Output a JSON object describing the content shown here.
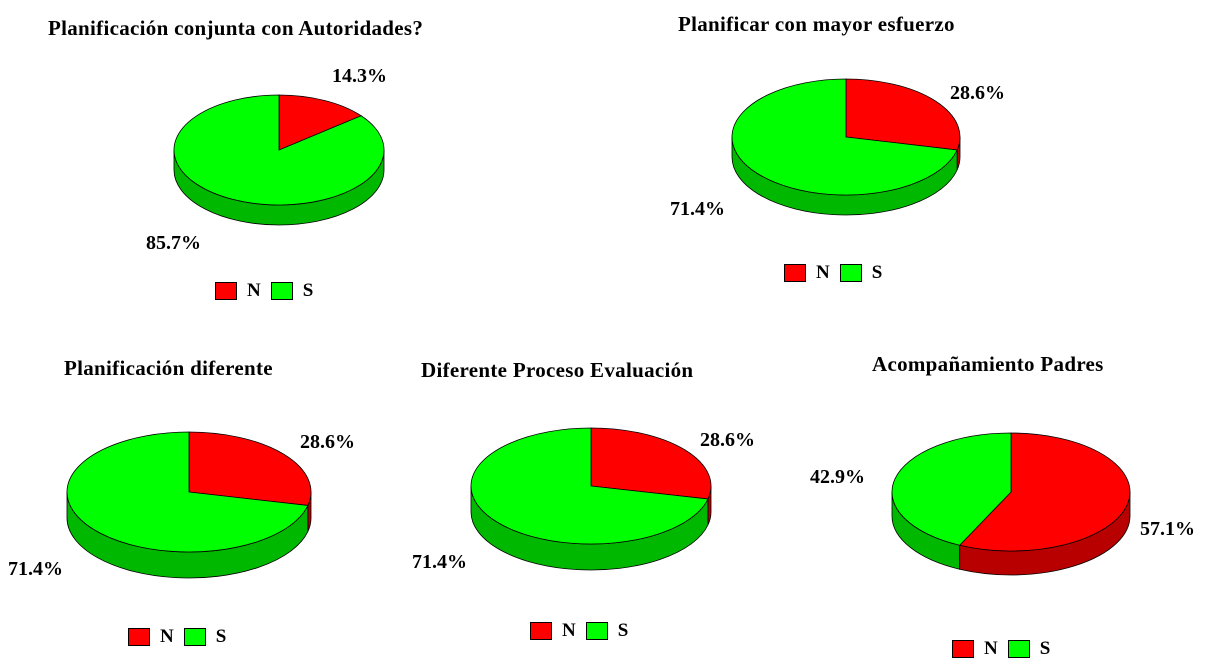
{
  "chart_data": [
    {
      "type": "pie",
      "title": "Planificación conjunta con Autoridades?",
      "slices": [
        {
          "label": "N",
          "value": 14.3,
          "text": "14.3%",
          "color": "#ff0000"
        },
        {
          "label": "S",
          "value": 85.7,
          "text": "85.7%",
          "color": "#00ff00"
        }
      ],
      "legend": [
        {
          "label": "N",
          "color": "#ff0000"
        },
        {
          "label": "S",
          "color": "#00ff00"
        }
      ]
    },
    {
      "type": "pie",
      "title": "Planificar con mayor esfuerzo",
      "slices": [
        {
          "label": "N",
          "value": 28.6,
          "text": "28.6%",
          "color": "#ff0000"
        },
        {
          "label": "S",
          "value": 71.4,
          "text": "71.4%",
          "color": "#00ff00"
        }
      ],
      "legend": [
        {
          "label": "N",
          "color": "#ff0000"
        },
        {
          "label": "S",
          "color": "#00ff00"
        }
      ]
    },
    {
      "type": "pie",
      "title": "Planificación diferente",
      "slices": [
        {
          "label": "N",
          "value": 28.6,
          "text": "28.6%",
          "color": "#ff0000"
        },
        {
          "label": "S",
          "value": 71.4,
          "text": "71.4%",
          "color": "#00ff00"
        }
      ],
      "legend": [
        {
          "label": "N",
          "color": "#ff0000"
        },
        {
          "label": "S",
          "color": "#00ff00"
        }
      ]
    },
    {
      "type": "pie",
      "title": "Diferente Proceso Evaluación",
      "slices": [
        {
          "label": "N",
          "value": 28.6,
          "text": "28.6%",
          "color": "#ff0000"
        },
        {
          "label": "S",
          "value": 71.4,
          "text": "71.4%",
          "color": "#00ff00"
        }
      ],
      "legend": [
        {
          "label": "N",
          "color": "#ff0000"
        },
        {
          "label": "S",
          "color": "#00ff00"
        }
      ]
    },
    {
      "type": "pie",
      "title": "Acompañamiento Padres",
      "slices": [
        {
          "label": "N",
          "value": 57.1,
          "text": "57.1%",
          "color": "#ff0000"
        },
        {
          "label": "S",
          "value": 42.9,
          "text": "42.9%",
          "color": "#00ff00"
        }
      ],
      "legend": [
        {
          "label": "N",
          "color": "#ff0000"
        },
        {
          "label": "S",
          "color": "#00ff00"
        }
      ]
    }
  ]
}
